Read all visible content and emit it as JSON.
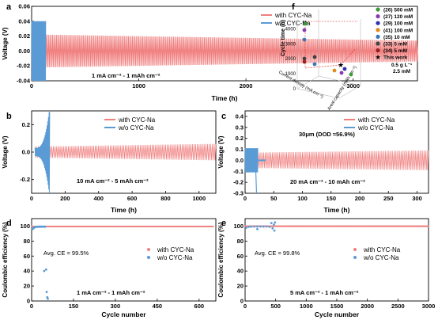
{
  "colors": {
    "with": "#f07f7f",
    "wo": "#5b9bd5",
    "red_text": "#e87272",
    "star": "#e02020"
  },
  "panels": {
    "a": {
      "letter": "a",
      "ylabel": "Voltage (V)",
      "xlabel": "Time (h)",
      "condition": "1 mA cm⁻² - 1 mAh cm⁻²",
      "yticks": [
        "-0.04",
        "-0.02",
        "0.00",
        "0.02",
        "0.04",
        "0.06"
      ],
      "xticks": [
        "0",
        "1000",
        "2000",
        "3000"
      ],
      "legend": [
        "with CYC-Na",
        "w/o  CYC-Na"
      ]
    },
    "b": {
      "letter": "b",
      "ylabel": "Voltage (V)",
      "xlabel": "Time (h)",
      "condition": "10 mA cm⁻² - 5 mAh cm⁻²",
      "yticks": [
        "-0.2",
        "0.0",
        "0.2"
      ],
      "xticks": [
        "0",
        "200",
        "400",
        "600",
        "800",
        "1000"
      ],
      "legend": [
        "with CYC-Na",
        "w/o  CYC-Na"
      ]
    },
    "c": {
      "letter": "c",
      "ylabel": "Voltage (V)",
      "xlabel": "Time (h)",
      "condition": "20 mA cm⁻² - 10 mAh cm⁻²",
      "note": "30μm (DOD ≈56.9%)",
      "yticks": [
        "-0.3",
        "-0.2",
        "-0.1",
        "0.0",
        "0.1",
        "0.2",
        "0.3",
        "0.4"
      ],
      "xticks": [
        "0",
        "50",
        "100",
        "150",
        "200",
        "250",
        "300"
      ],
      "legend": [
        "with CYC-Na",
        "w/o  CYC-Na"
      ]
    },
    "d": {
      "letter": "d",
      "ylabel": "Coulombic efficiency (%)",
      "xlabel": "Cycle number",
      "condition": "1 mA cm⁻² - 1 mAh cm⁻²",
      "avg": "Avg. CE = 99.5%",
      "yticks": [
        "0",
        "20",
        "40",
        "60",
        "80",
        "100"
      ],
      "xticks": [
        "0",
        "150",
        "300",
        "450",
        "600"
      ],
      "legend": [
        "with CYC-Na",
        "w/o  CYC-Na"
      ]
    },
    "e": {
      "letter": "e",
      "ylabel": "Coulombic efficiency (%)",
      "xlabel": "Cycle number",
      "condition": "5 mA cm⁻² - 1 mAh cm⁻²",
      "avg": "Avg. CE = 99.8%",
      "yticks": [
        "0",
        "20",
        "40",
        "60",
        "80",
        "100"
      ],
      "xticks": [
        "0",
        "500",
        "1000",
        "1500",
        "2000",
        "2500",
        "3000"
      ],
      "legend": [
        "with CYC-Na",
        "w/o  CYC-Na"
      ]
    },
    "f": {
      "letter": "f",
      "zlabel": "Cycle time (h)",
      "xlabel": "Current density (mA cm⁻²)",
      "ylabel": "Areal capacity (mAh cm⁻²)",
      "zticks": [
        "0",
        "1000",
        "2000",
        "3000",
        "4000"
      ],
      "star_label": [
        "0.5 g L⁻¹",
        "2.5 mM"
      ]
    }
  },
  "chart_data": [
    {
      "type": "line",
      "panel": "a",
      "xlabel": "Time (h)",
      "ylabel": "Voltage (V)",
      "xlim": [
        0,
        3600
      ],
      "ylim": [
        -0.04,
        0.06
      ],
      "series": [
        {
          "name": "with CYC-Na",
          "x_range": [
            100,
            3600
          ],
          "amplitude_start": 0.022,
          "amplitude_end": 0.014
        },
        {
          "name": "w/o  CYC-Na",
          "x_range": [
            0,
            130
          ],
          "amplitude": 0.04
        }
      ]
    },
    {
      "type": "line",
      "panel": "b",
      "xlabel": "Time (h)",
      "ylabel": "Voltage (V)",
      "xlim": [
        0,
        1100
      ],
      "ylim": [
        -0.3,
        0.3
      ],
      "series": [
        {
          "name": "with CYC-Na",
          "x_range": [
            20,
            1100
          ],
          "amplitude_start": 0.04,
          "amplitude_end": 0.06
        },
        {
          "name": "w/o  CYC-Na",
          "x_range": [
            0,
            110
          ],
          "amplitude_max": 0.3
        }
      ]
    },
    {
      "type": "line",
      "panel": "c",
      "xlabel": "Time (h)",
      "ylabel": "Voltage (V)",
      "xlim": [
        0,
        320
      ],
      "ylim": [
        -0.3,
        0.45
      ],
      "series": [
        {
          "name": "with CYC-Na",
          "x_range": [
            10,
            320
          ],
          "amplitude_start": 0.07,
          "amplitude_end": 0.09
        },
        {
          "name": "w/o  CYC-Na",
          "x_range": [
            0,
            30
          ],
          "amplitude": 0.11
        }
      ]
    },
    {
      "type": "scatter",
      "panel": "d",
      "xlabel": "Cycle number",
      "ylabel": "Coulombic efficiency (%)",
      "xlim": [
        0,
        660
      ],
      "ylim": [
        0,
        110
      ],
      "series": [
        {
          "name": "with CYC-Na",
          "x_range": [
            1,
            650
          ],
          "y": 99.5
        },
        {
          "name": "w/o  CYC-Na",
          "points": [
            [
              3,
              96
            ],
            [
              6,
              97
            ],
            [
              9,
              98
            ],
            [
              12,
              98.5
            ],
            [
              15,
              99
            ],
            [
              20,
              99
            ],
            [
              25,
              99.2
            ],
            [
              30,
              99.2
            ],
            [
              35,
              99.3
            ],
            [
              40,
              99.3
            ],
            [
              45,
              99.3
            ],
            [
              48,
              99.2
            ],
            [
              45,
              40
            ],
            [
              52,
              42
            ],
            [
              54,
              12
            ],
            [
              56,
              5
            ],
            [
              58,
              3
            ]
          ]
        }
      ]
    },
    {
      "type": "scatter",
      "panel": "e",
      "xlabel": "Cycle number",
      "ylabel": "Coulombic efficiency (%)",
      "xlim": [
        0,
        3000
      ],
      "ylim": [
        0,
        110
      ],
      "series": [
        {
          "name": "with CYC-Na",
          "x_range": [
            1,
            3000
          ],
          "y": 99.8
        },
        {
          "name": "w/o  CYC-Na",
          "points": [
            [
              20,
              98
            ],
            [
              60,
              99
            ],
            [
              100,
              99.3
            ],
            [
              150,
              99.4
            ],
            [
              200,
              99.5
            ],
            [
              200,
              96
            ],
            [
              250,
              99.5
            ],
            [
              300,
              99.4
            ],
            [
              350,
              99.5
            ],
            [
              400,
              99
            ],
            [
              430,
              104
            ],
            [
              450,
              97
            ],
            [
              470,
              102
            ],
            [
              480,
              94
            ],
            [
              490,
              105
            ]
          ]
        }
      ]
    },
    {
      "type": "scatter",
      "panel": "f",
      "zlabel": "Cycle time (h)",
      "zlim": [
        0,
        4000
      ],
      "series": [
        {
          "name": "(26) 500 mM",
          "color": "#3a9a3a"
        },
        {
          "name": "(27) 120 mM",
          "color": "#8a3ab0"
        },
        {
          "name": "(29) 100 mM",
          "color": "#2f2fb0"
        },
        {
          "name": "(41) 100 mM",
          "color": "#e08a1a"
        },
        {
          "name": "(35) 10 mM",
          "color": "#3a78b8"
        },
        {
          "name": "(33) 5 mM",
          "color": "#404040"
        },
        {
          "name": "(34) 5 mM",
          "color": "#9a2020"
        },
        {
          "name": "This work",
          "color": "#e02020",
          "marker": "star"
        }
      ]
    }
  ]
}
